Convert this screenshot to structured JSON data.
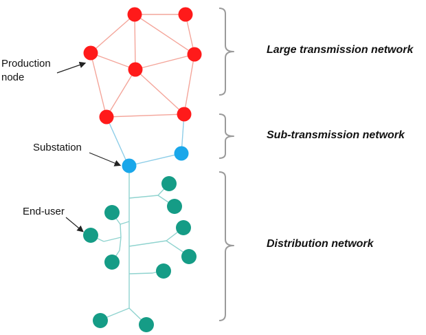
{
  "labels": {
    "production_node_line1": "Production",
    "production_node_line2": "node",
    "substation": "Substation",
    "end_user": "End-user"
  },
  "sections": {
    "large": "Large transmission network",
    "sub": "Sub-transmission network",
    "distribution": "Distribution network"
  },
  "colors": {
    "production_node": "#ff1a1a",
    "transmission_link": "#f4a59a",
    "substation_node": "#1aa7ea",
    "sub_transmission_link": "#8ccde8",
    "end_user_node": "#159c86",
    "distribution_link": "#8fd3cf",
    "bracket": "#9a9a9a",
    "arrow": "#222222"
  }
}
